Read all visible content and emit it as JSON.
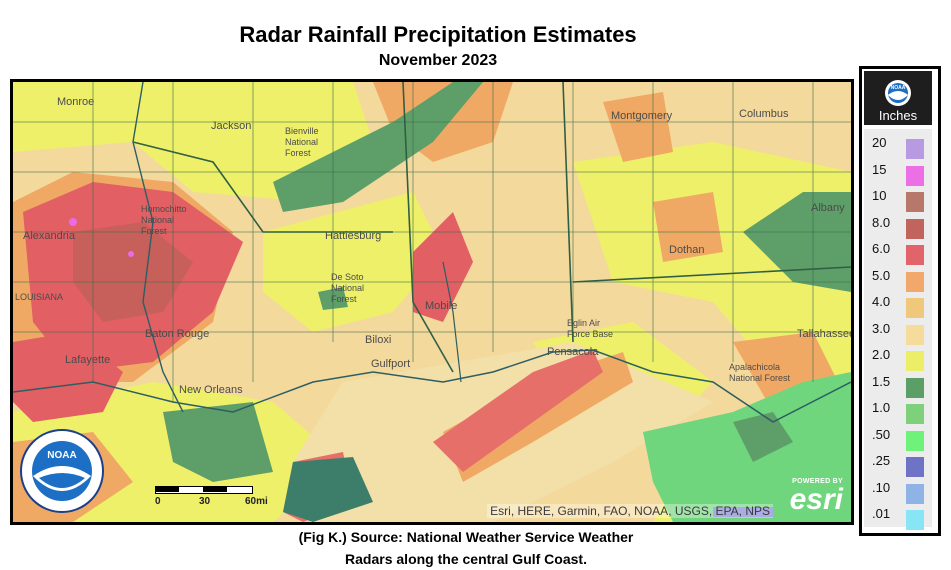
{
  "header": {
    "title": "Radar Rainfall Precipitation Estimates",
    "subtitle": "November 2023"
  },
  "map": {
    "places": [
      "Monroe",
      "Jackson",
      "Bienville National Forest",
      "Montgomery",
      "Columbus",
      "Homochitto National Forest",
      "Alexandria",
      "Hattiesburg",
      "De Soto National Forest",
      "Dothan",
      "Albany",
      "Mobile",
      "Baton Rouge",
      "Biloxi",
      "Gulfport",
      "Eglin Air Force Base",
      "Pensacola",
      "Tallahassee",
      "Apalachicola National Forest",
      "Lafayette",
      "New Orleans",
      "LOUISIANA"
    ],
    "attribution": "Esri, HERE, Garmin, FAO, NOAA, USGS, EPA, NPS",
    "esri_powered": "POWERED BY",
    "esri_word": "esri",
    "scale_labels": [
      "0",
      "30",
      "60mi"
    ],
    "noaa_label": "NOAA"
  },
  "legend": {
    "logo_label": "NOAA",
    "units": "Inches",
    "labels": [
      "20",
      "15",
      "10",
      "8.0",
      "6.0",
      "5.0",
      "4.0",
      "3.0",
      "2.0",
      "1.5",
      "1.0",
      ".50",
      ".25",
      ".10",
      ".01"
    ],
    "colors": [
      "#b79ae2",
      "#ec6fe8",
      "#b8776b",
      "#c2645e",
      "#e2646a",
      "#f2a86b",
      "#f0c87b",
      "#f5dc9c",
      "#edee68",
      "#5c9f66",
      "#7fd07a",
      "#6ff27a",
      "#6f73c5",
      "#8fb3e6",
      "#88e5f5"
    ]
  },
  "caption": {
    "line1": "(Fig K.) Source: National Weather Service Weather",
    "line2": "Radars along the central Gulf Coast."
  }
}
